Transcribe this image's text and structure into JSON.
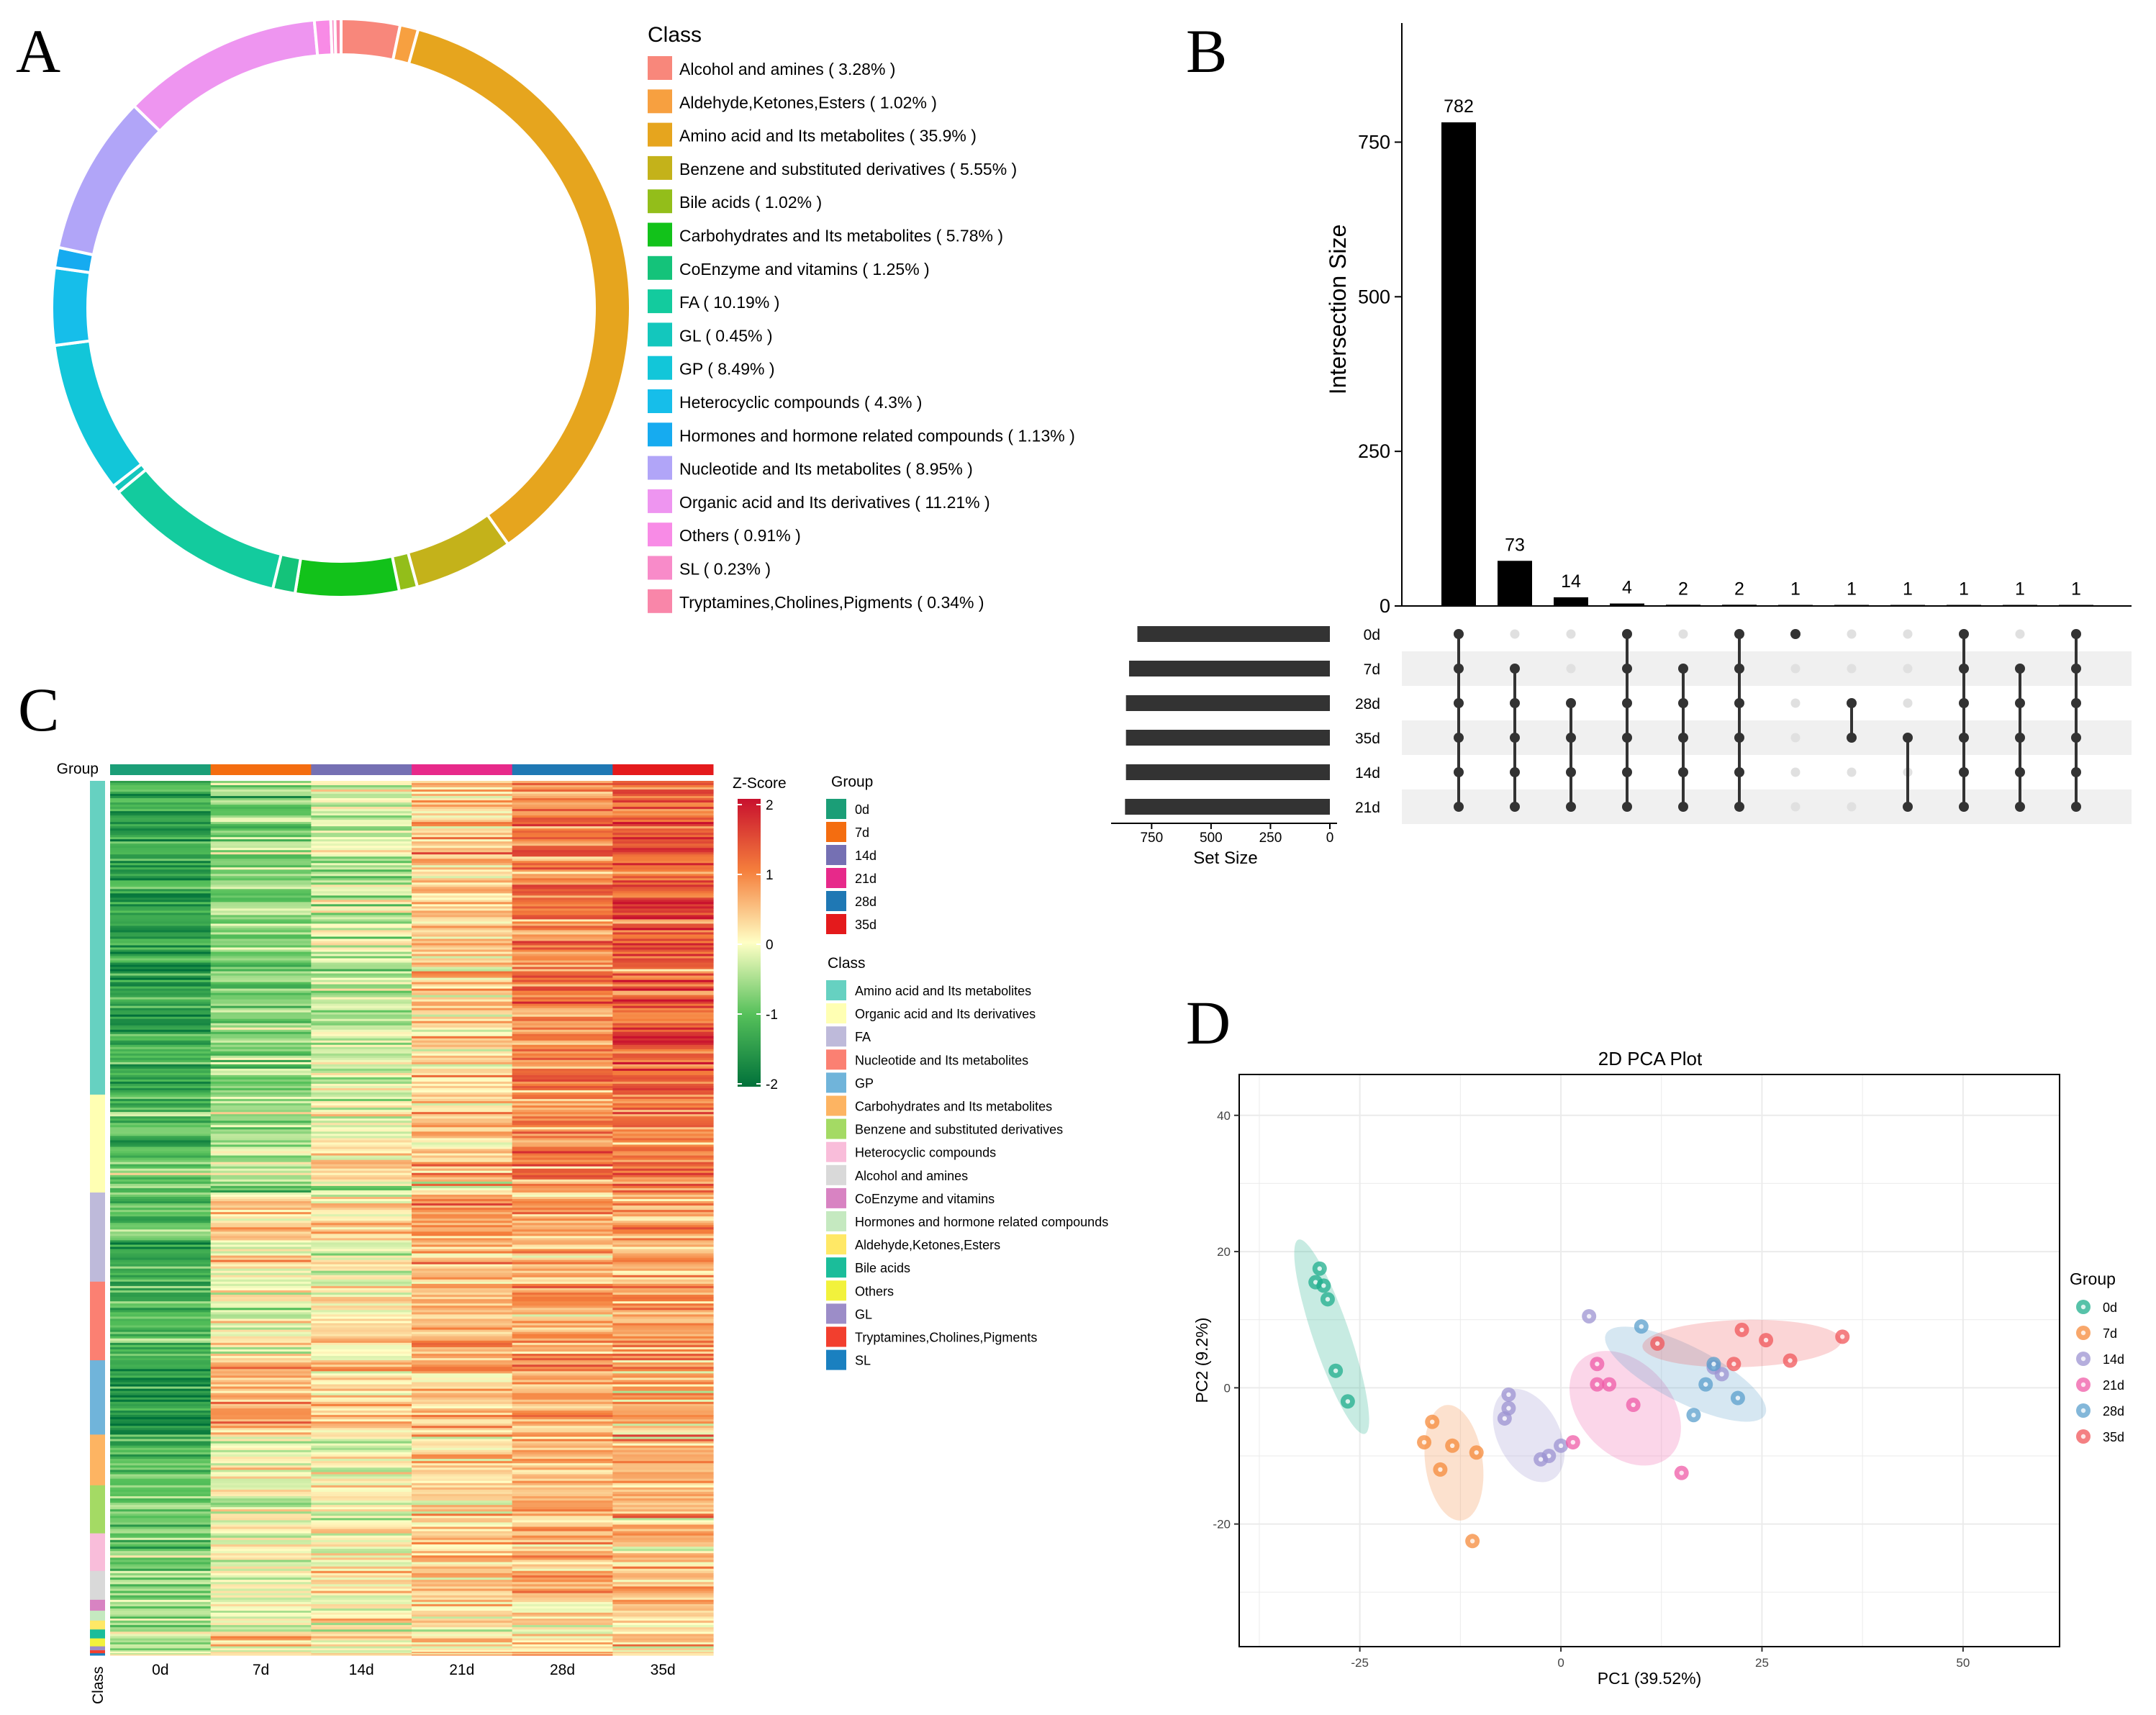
{
  "panels": {
    "a": "A",
    "b": "B",
    "c": "C",
    "d": "D"
  },
  "chart_data": [
    {
      "type": "pie",
      "panel": "A",
      "legend_title": "Class",
      "slices": [
        {
          "label": "Alcohol and amines ( 3.28% )",
          "value": 3.28,
          "color": "#F8877B"
        },
        {
          "label": "Aldehyde,Ketones,Esters ( 1.02% )",
          "value": 1.02,
          "color": "#F7A040"
        },
        {
          "label": "Amino acid and Its metabolites ( 35.9% )",
          "value": 35.9,
          "color": "#E6A51E"
        },
        {
          "label": "Benzene and substituted derivatives ( 5.55% )",
          "value": 5.55,
          "color": "#C4B21A"
        },
        {
          "label": "Bile acids ( 1.02% )",
          "value": 1.02,
          "color": "#93BE1A"
        },
        {
          "label": "Carbohydrates and Its metabolites ( 5.78% )",
          "value": 5.78,
          "color": "#12C21A"
        },
        {
          "label": "CoEnzyme and vitamins ( 1.25% )",
          "value": 1.25,
          "color": "#14C37A"
        },
        {
          "label": "FA ( 10.19% )",
          "value": 10.19,
          "color": "#13CB9E"
        },
        {
          "label": "GL ( 0.45% )",
          "value": 0.45,
          "color": "#13C7BD"
        },
        {
          "label": "GP ( 8.49% )",
          "value": 8.49,
          "color": "#12C6D9"
        },
        {
          "label": "Heterocyclic compounds ( 4.3% )",
          "value": 4.3,
          "color": "#16BEEA"
        },
        {
          "label": "Hormones and hormone related compounds ( 1.13% )",
          "value": 1.13,
          "color": "#16ABF0"
        },
        {
          "label": "Nucleotide and Its metabolites ( 8.95% )",
          "value": 8.95,
          "color": "#B1A5F8"
        },
        {
          "label": "Organic acid and Its derivatives ( 11.21% )",
          "value": 11.21,
          "color": "#EE95F0"
        },
        {
          "label": "Others ( 0.91% )",
          "value": 0.91,
          "color": "#F88BE6"
        },
        {
          "label": "SL ( 0.23% )",
          "value": 0.23,
          "color": "#F88BC9"
        },
        {
          "label": "Tryptamines,Cholines,Pigments ( 0.34% )",
          "value": 0.34,
          "color": "#F986A9"
        }
      ]
    },
    {
      "type": "upset",
      "panel": "B",
      "ylabel": "Intersection Size",
      "yticks": [
        0,
        250,
        500,
        750
      ],
      "ylim": [
        0,
        900
      ],
      "intersections": [
        782,
        73,
        14,
        4,
        2,
        2,
        1,
        1,
        1,
        1,
        1,
        1
      ],
      "sets": [
        "0d",
        "7d",
        "28d",
        "35d",
        "14d",
        "21d"
      ],
      "set_sizes": [
        810,
        845,
        858,
        858,
        858,
        862
      ],
      "set_size_label": "Set Size",
      "set_size_ticks": [
        750,
        500,
        250,
        0
      ],
      "membership": [
        [
          0,
          1,
          2,
          3,
          4,
          5
        ],
        [
          1,
          2,
          3,
          4,
          5
        ],
        [
          2,
          3,
          4,
          5
        ],
        [
          0,
          1,
          2,
          3,
          4,
          5
        ],
        [
          1,
          2,
          3,
          4,
          5
        ],
        [
          0,
          1,
          2,
          3,
          4,
          5
        ],
        [
          0
        ],
        [
          2,
          3
        ],
        [
          3,
          5
        ],
        [
          0,
          1,
          2,
          3,
          4,
          5
        ],
        [
          1,
          2,
          3,
          4,
          5
        ],
        [
          0,
          1,
          2,
          3,
          4,
          5
        ]
      ]
    },
    {
      "type": "heatmap",
      "panel": "C",
      "group_label": "Group",
      "class_label": "Class",
      "columns": [
        "0d",
        "7d",
        "14d",
        "21d",
        "28d",
        "35d"
      ],
      "column_colors": [
        "#1B9E77",
        "#F46D10",
        "#7570B3",
        "#E7298A",
        "#1F78B4",
        "#E41A1C"
      ],
      "column_means": [
        -1.3,
        -0.55,
        0.0,
        0.45,
        0.95,
        1.25
      ],
      "row_blocks": [
        {
          "class": "Amino acid and Its metabolites",
          "rows": 35.9,
          "color": "#66D1C1",
          "means": [
            -1.3,
            -0.7,
            -0.3,
            0.4,
            1.0,
            1.35
          ]
        },
        {
          "class": "Organic acid and Its derivatives",
          "rows": 11.2,
          "color": "#FFFFB3",
          "means": [
            -0.9,
            -0.4,
            0.05,
            0.45,
            0.95,
            1.05
          ]
        },
        {
          "class": "FA",
          "rows": 10.2,
          "color": "#BEBADA",
          "means": [
            -1.0,
            0.3,
            0.1,
            0.6,
            0.7,
            0.6
          ]
        },
        {
          "class": "Nucleotide and Its metabolites",
          "rows": 9.0,
          "color": "#FB8072",
          "means": [
            -1.2,
            -0.1,
            0.1,
            0.5,
            0.8,
            0.8
          ]
        },
        {
          "class": "GP",
          "rows": 8.5,
          "color": "#70B4DA",
          "means": [
            -1.6,
            0.6,
            0.3,
            0.5,
            0.6,
            0.5
          ]
        },
        {
          "class": "Carbohydrates and Its metabolites",
          "rows": 5.8,
          "color": "#FDB462",
          "means": [
            -1.0,
            0.2,
            0.1,
            0.4,
            0.6,
            0.6
          ]
        },
        {
          "class": "Benzene and substituted derivatives",
          "rows": 5.5,
          "color": "#A4DA64",
          "means": [
            -0.8,
            -0.1,
            0.1,
            0.4,
            0.6,
            0.6
          ]
        },
        {
          "class": "Heterocyclic compounds",
          "rows": 4.3,
          "color": "#F9BDDA",
          "means": [
            -0.9,
            0.0,
            0.1,
            0.5,
            0.6,
            0.5
          ]
        },
        {
          "class": "Alcohol and amines",
          "rows": 3.3,
          "color": "#D9D9D9",
          "means": [
            -0.7,
            -0.1,
            0.1,
            0.4,
            0.6,
            0.5
          ]
        },
        {
          "class": "CoEnzyme and vitamins",
          "rows": 1.25,
          "color": "#D883C2",
          "means": [
            -0.5,
            0.2,
            0.1,
            0.3,
            0.3,
            0.2
          ]
        },
        {
          "class": "Hormones and hormone related compounds",
          "rows": 1.13,
          "color": "#C5E9C0",
          "means": [
            -0.6,
            0.1,
            0.1,
            0.3,
            0.4,
            0.3
          ]
        },
        {
          "class": "Aldehyde,Ketones,Esters",
          "rows": 1.02,
          "color": "#FFE866",
          "means": [
            -0.5,
            0.0,
            0.2,
            0.3,
            0.4,
            0.3
          ]
        },
        {
          "class": "Bile acids",
          "rows": 1.02,
          "color": "#1BBD9A",
          "means": [
            -0.4,
            0.3,
            0.1,
            0.2,
            0.3,
            0.2
          ]
        },
        {
          "class": "Others",
          "rows": 0.91,
          "color": "#F2F23C",
          "means": [
            -0.5,
            0.1,
            0.1,
            0.3,
            0.3,
            0.3
          ]
        },
        {
          "class": "GL",
          "rows": 0.45,
          "color": "#9C8DC8",
          "means": [
            -0.4,
            0.1,
            0.1,
            0.2,
            0.3,
            0.2
          ]
        },
        {
          "class": "Tryptamines,Cholines,Pigments",
          "rows": 0.34,
          "color": "#F23F2E",
          "means": [
            -0.4,
            0.1,
            0.1,
            0.2,
            0.3,
            0.2
          ]
        },
        {
          "class": "SL",
          "rows": 0.23,
          "color": "#1A80C0",
          "means": [
            -0.4,
            0.1,
            0.1,
            0.2,
            0.3,
            0.2
          ]
        }
      ],
      "colorbar": {
        "title": "Z-Score",
        "ticks": [
          2,
          1,
          0,
          -1,
          -2
        ],
        "range": [
          -2,
          2
        ]
      },
      "group_legend_title": "Group",
      "class_legend_title": "Class"
    },
    {
      "type": "scatter",
      "panel": "D",
      "title": "2D PCA Plot",
      "xlabel": "PC1 (39.52%)",
      "ylabel": "PC2 (9.2%)",
      "xlim": [
        -40,
        62
      ],
      "ylim": [
        -38,
        46
      ],
      "xticks": [
        -25,
        0,
        25,
        50
      ],
      "yticks": [
        40,
        20,
        0,
        -20
      ],
      "legend_title": "Group",
      "series": [
        {
          "name": "0d",
          "color": "#1FAE8C",
          "points": [
            [
              -30,
              17.5
            ],
            [
              -30.5,
              15.5
            ],
            [
              -29.5,
              15
            ],
            [
              -29,
              13
            ],
            [
              -28,
              2.5
            ],
            [
              -26.5,
              -2
            ]
          ],
          "ellipse": {
            "cx": -28.5,
            "cy": 7.5,
            "rx": 27,
            "ry": 4.2,
            "angle": -74
          }
        },
        {
          "name": "7d",
          "color": "#F5893A",
          "points": [
            [
              -16,
              -5
            ],
            [
              -17,
              -8
            ],
            [
              -13.5,
              -8.5
            ],
            [
              -10.5,
              -9.5
            ],
            [
              -15,
              -12
            ],
            [
              -11,
              -22.5
            ]
          ],
          "ellipse": {
            "cx": -13.3,
            "cy": -11,
            "rx": 15.5,
            "ry": 6.5,
            "angle": -84
          }
        },
        {
          "name": "14d",
          "color": "#9C93D1",
          "points": [
            [
              -6.5,
              -1
            ],
            [
              -6.5,
              -3
            ],
            [
              -7,
              -4.5
            ],
            [
              0,
              -8.5
            ],
            [
              -1.5,
              -10
            ],
            [
              -2.5,
              -10.5
            ],
            [
              3.5,
              10.5
            ],
            [
              19,
              3
            ],
            [
              20,
              2
            ]
          ],
          "ellipse": {
            "cx": -4,
            "cy": -7,
            "rx": 13,
            "ry": 7.2,
            "angle": -70
          }
        },
        {
          "name": "21d",
          "color": "#EF5BA7",
          "points": [
            [
              4.5,
              3.5
            ],
            [
              4.5,
              0.5
            ],
            [
              6,
              0.5
            ],
            [
              1.5,
              -8
            ],
            [
              9,
              -2.5
            ],
            [
              15,
              -12.5
            ]
          ],
          "ellipse": {
            "cx": 8,
            "cy": -3,
            "rx": 16.5,
            "ry": 11,
            "angle": -60
          }
        },
        {
          "name": "28d",
          "color": "#5A9FCC",
          "points": [
            [
              10,
              9
            ],
            [
              18,
              0.5
            ],
            [
              19,
              3.5
            ],
            [
              22,
              -1.5
            ],
            [
              16.5,
              -4
            ]
          ],
          "ellipse": {
            "cx": 15.5,
            "cy": 2,
            "rx": 21,
            "ry": 7.2,
            "angle": -32
          }
        },
        {
          "name": "35d",
          "color": "#F0565A",
          "points": [
            [
              12,
              6.5
            ],
            [
              21.5,
              3.5
            ],
            [
              22.5,
              8.5
            ],
            [
              25.5,
              7
            ],
            [
              28.5,
              4
            ],
            [
              35,
              7.5
            ]
          ],
          "ellipse": {
            "cx": 22.5,
            "cy": 6.5,
            "rx": 22.5,
            "ry": 6.3,
            "angle": 2
          }
        }
      ]
    }
  ]
}
